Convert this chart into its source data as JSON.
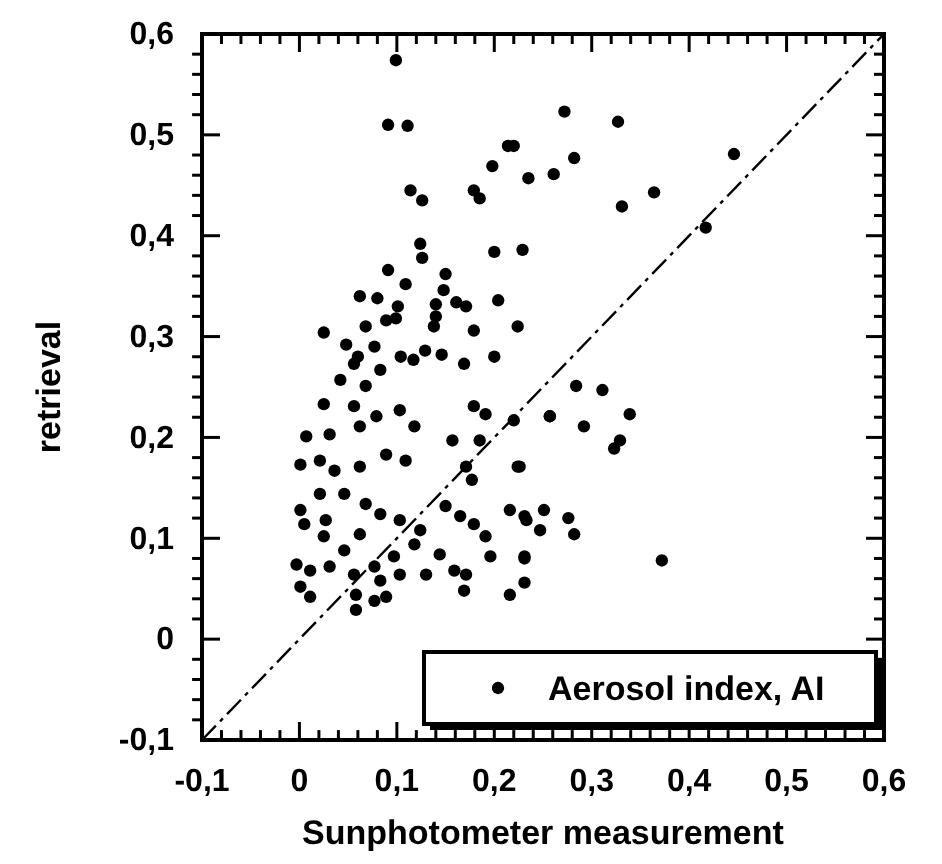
{
  "chart_data": {
    "type": "scatter",
    "xlabel": "Sunphotometer measurement",
    "ylabel": "retrieval",
    "xlim": [
      -0.1,
      0.6
    ],
    "ylim": [
      -0.1,
      0.6
    ],
    "xticks": [
      {
        "value": -0.1,
        "label": "-0,1"
      },
      {
        "value": -0.08,
        "label": null
      },
      {
        "value": -0.06,
        "label": null
      },
      {
        "value": -0.04,
        "label": null
      },
      {
        "value": -0.02,
        "label": null
      },
      0,
      {
        "value": 0.02,
        "label": null
      },
      {
        "value": 0.04,
        "label": null
      },
      {
        "value": 0.06,
        "label": null
      },
      {
        "value": 0.08,
        "label": null
      },
      {
        "value": 0.1,
        "label": "0,1"
      },
      {
        "value": 0.12,
        "label": null
      },
      {
        "value": 0.14,
        "label": null
      },
      {
        "value": 0.16,
        "label": null
      },
      {
        "value": 0.18,
        "label": null
      },
      {
        "value": 0.2,
        "label": "0,2"
      },
      {
        "value": 0.22,
        "label": null
      },
      {
        "value": 0.24,
        "label": null
      },
      {
        "value": 0.26,
        "label": null
      },
      {
        "value": 0.28,
        "label": null
      },
      {
        "value": 0.3,
        "label": "0,3"
      },
      {
        "value": 0.32,
        "label": null
      },
      {
        "value": 0.34,
        "label": null
      },
      {
        "value": 0.36,
        "label": null
      },
      {
        "value": 0.38,
        "label": null
      },
      {
        "value": 0.4,
        "label": "0,4"
      },
      {
        "value": 0.42,
        "label": null
      },
      {
        "value": 0.44,
        "label": null
      },
      {
        "value": 0.46,
        "label": null
      },
      {
        "value": 0.48,
        "label": null
      },
      {
        "value": 0.5,
        "label": "0,5"
      },
      {
        "value": 0.52,
        "label": null
      },
      {
        "value": 0.54,
        "label": null
      },
      {
        "value": 0.56,
        "label": null
      },
      {
        "value": 0.58,
        "label": null
      },
      {
        "value": 0.6,
        "label": "0,6"
      }
    ],
    "yticks": [
      {
        "value": -0.1,
        "label": "-0,1"
      },
      {
        "value": -0.08,
        "label": null
      },
      {
        "value": -0.06,
        "label": null
      },
      {
        "value": -0.04,
        "label": null
      },
      {
        "value": -0.02,
        "label": null
      },
      0,
      {
        "value": 0.02,
        "label": null
      },
      {
        "value": 0.04,
        "label": null
      },
      {
        "value": 0.06,
        "label": null
      },
      {
        "value": 0.08,
        "label": null
      },
      {
        "value": 0.1,
        "label": "0,1"
      },
      {
        "value": 0.12,
        "label": null
      },
      {
        "value": 0.14,
        "label": null
      },
      {
        "value": 0.16,
        "label": null
      },
      {
        "value": 0.18,
        "label": null
      },
      {
        "value": 0.2,
        "label": "0,2"
      },
      {
        "value": 0.22,
        "label": null
      },
      {
        "value": 0.24,
        "label": null
      },
      {
        "value": 0.26,
        "label": null
      },
      {
        "value": 0.28,
        "label": null
      },
      {
        "value": 0.3,
        "label": "0,3"
      },
      {
        "value": 0.32,
        "label": null
      },
      {
        "value": 0.34,
        "label": null
      },
      {
        "value": 0.36,
        "label": null
      },
      {
        "value": 0.38,
        "label": null
      },
      {
        "value": 0.4,
        "label": "0,4"
      },
      {
        "value": 0.42,
        "label": null
      },
      {
        "value": 0.44,
        "label": null
      },
      {
        "value": 0.46,
        "label": null
      },
      {
        "value": 0.48,
        "label": null
      },
      {
        "value": 0.5,
        "label": "0,5"
      },
      {
        "value": 0.52,
        "label": null
      },
      {
        "value": 0.54,
        "label": null
      },
      {
        "value": 0.56,
        "label": null
      },
      {
        "value": 0.58,
        "label": null
      },
      {
        "value": 0.6,
        "label": "0,6"
      }
    ],
    "grid": false,
    "legend": "bottom right",
    "marker": "circle",
    "series": [
      {
        "name": "Aerosol index, AI",
        "color": "#000000",
        "x": [
          0.099,
          0.091,
          0.111,
          0.114,
          0.126,
          0.124,
          0.126,
          0.091,
          0.15,
          0.109,
          0.062,
          0.08,
          0.148,
          0.101,
          0.14,
          0.161,
          0.171,
          0.089,
          0.099,
          0.14,
          0.138,
          0.025,
          0.068,
          0.179,
          0.204,
          0.224,
          0.048,
          0.077,
          0.06,
          0.104,
          0.117,
          0.129,
          0.146,
          0.169,
          0.2,
          0.179,
          0.185,
          0.198,
          0.214,
          0.22,
          0.235,
          0.261,
          0.2,
          0.229,
          0.272,
          0.327,
          0.282,
          0.331,
          0.364,
          0.446,
          0.417,
          0.284,
          0.311,
          0.257,
          0.292,
          0.339,
          0.329,
          0.323,
          0.226,
          0.231,
          0.251,
          0.247,
          0.276,
          0.282,
          0.231,
          0.231,
          0.372,
          0.056,
          0.083,
          0.042,
          0.068,
          0.025,
          0.056,
          0.103,
          0.079,
          0.007,
          0.031,
          0.062,
          0.118,
          0.179,
          0.191,
          0.001,
          0.021,
          0.036,
          0.062,
          0.089,
          0.109,
          0.157,
          0.185,
          0.171,
          0.177,
          0.22,
          0.257,
          0.224,
          0.021,
          0.046,
          0.068,
          0.001,
          0.005,
          0.027,
          0.083,
          0.103,
          0.124,
          0.15,
          0.165,
          0.179,
          0.191,
          0.216,
          0.233,
          0.025,
          0.062,
          0.046,
          0.118,
          0.097,
          0.144,
          0.196,
          0.231,
          -0.003,
          0.011,
          0.031,
          0.056,
          0.077,
          0.083,
          0.103,
          0.13,
          0.159,
          0.171,
          0.169,
          0.001,
          0.011,
          0.058,
          0.058,
          0.077,
          0.089,
          0.216
        ],
        "values": [
          0.574,
          0.51,
          0.509,
          0.445,
          0.435,
          0.392,
          0.378,
          0.366,
          0.362,
          0.352,
          0.34,
          0.338,
          0.346,
          0.33,
          0.332,
          0.334,
          0.33,
          0.316,
          0.318,
          0.32,
          0.31,
          0.304,
          0.31,
          0.306,
          0.336,
          0.31,
          0.292,
          0.29,
          0.28,
          0.28,
          0.277,
          0.286,
          0.282,
          0.273,
          0.28,
          0.445,
          0.437,
          0.469,
          0.489,
          0.489,
          0.457,
          0.461,
          0.384,
          0.386,
          0.523,
          0.513,
          0.477,
          0.429,
          0.443,
          0.481,
          0.408,
          0.251,
          0.247,
          0.221,
          0.211,
          0.223,
          0.197,
          0.189,
          0.171,
          0.122,
          0.128,
          0.108,
          0.12,
          0.104,
          0.082,
          0.056,
          0.078,
          0.273,
          0.267,
          0.257,
          0.251,
          0.233,
          0.231,
          0.227,
          0.221,
          0.201,
          0.203,
          0.211,
          0.211,
          0.231,
          0.223,
          0.173,
          0.177,
          0.167,
          0.171,
          0.183,
          0.177,
          0.197,
          0.197,
          0.171,
          0.158,
          0.217,
          0.221,
          0.171,
          0.144,
          0.144,
          0.134,
          0.128,
          0.114,
          0.118,
          0.124,
          0.118,
          0.108,
          0.132,
          0.122,
          0.114,
          0.102,
          0.128,
          0.118,
          0.102,
          0.104,
          0.088,
          0.094,
          0.082,
          0.084,
          0.082,
          0.08,
          0.074,
          0.068,
          0.072,
          0.064,
          0.072,
          0.058,
          0.064,
          0.064,
          0.068,
          0.064,
          0.048,
          0.052,
          0.042,
          0.044,
          0.029,
          0.038,
          0.042,
          0.044
        ]
      },
      {
        "type": "line",
        "color": "#000000",
        "line_style": "dashed",
        "marker": "none",
        "x": [
          -0.1,
          0.6
        ],
        "values": [
          -0.1,
          0.6
        ]
      }
    ]
  }
}
